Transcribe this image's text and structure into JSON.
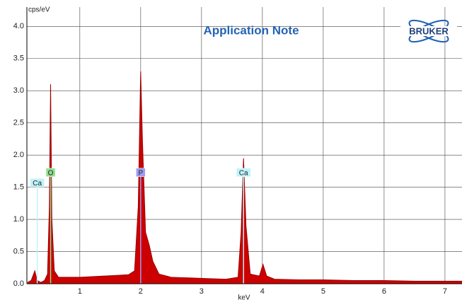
{
  "chart_data": {
    "type": "area",
    "title": "Application Note",
    "logo": "BRUKER",
    "y_label": "cps/eV",
    "x_label": "keV",
    "color": "#cc0000",
    "grid": true,
    "xlim": [
      0.13,
      7.28
    ],
    "ylim": [
      0,
      4.3
    ],
    "xticks": [
      1,
      2,
      3,
      4,
      5,
      6,
      7
    ],
    "yticks": [
      {
        "value": 0,
        "label": "0.0"
      },
      0.5,
      {
        "value": 1,
        "label": "1.0"
      },
      1.5,
      {
        "value": 2,
        "label": "2.0"
      },
      2.5,
      {
        "value": 3,
        "label": "3.0"
      },
      3.5,
      {
        "value": 4,
        "label": "4.0"
      }
    ],
    "x": [
      0.14,
      0.2,
      0.26,
      0.3,
      0.36,
      0.42,
      0.47,
      0.5,
      0.52,
      0.54,
      0.58,
      0.65,
      0.8,
      1.0,
      1.2,
      1.4,
      1.6,
      1.8,
      1.9,
      1.96,
      2.0,
      2.03,
      2.08,
      2.14,
      2.2,
      2.3,
      2.5,
      2.8,
      3.1,
      3.4,
      3.6,
      3.65,
      3.69,
      3.73,
      3.8,
      3.95,
      4.01,
      4.07,
      4.2,
      4.6,
      5.0,
      5.5,
      6.0,
      6.5,
      7.0,
      7.28
    ],
    "values": [
      0.02,
      0.05,
      0.2,
      0.05,
      0.02,
      0.05,
      0.15,
      1.2,
      3.1,
      1.0,
      0.2,
      0.1,
      0.1,
      0.1,
      0.11,
      0.12,
      0.13,
      0.14,
      0.2,
      1.2,
      3.3,
      2.2,
      0.8,
      0.6,
      0.35,
      0.15,
      0.1,
      0.09,
      0.08,
      0.07,
      0.1,
      0.8,
      1.95,
      0.9,
      0.15,
      0.12,
      0.3,
      0.12,
      0.07,
      0.06,
      0.06,
      0.05,
      0.05,
      0.04,
      0.04,
      0.04
    ],
    "annotations": [
      {
        "text": "Ca",
        "x": 0.3,
        "y": 1.57,
        "color": "#bff3fa"
      },
      {
        "text": "O",
        "x": 0.52,
        "y": 1.73,
        "color": "#8fe08f"
      },
      {
        "text": "P",
        "x": 2.0,
        "y": 1.73,
        "color": "#9c9cf2"
      },
      {
        "text": "Ca",
        "x": 3.69,
        "y": 1.73,
        "color": "#bff3fa"
      }
    ]
  }
}
